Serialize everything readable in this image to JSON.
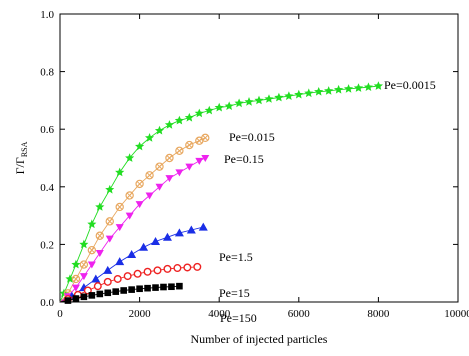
{
  "chart_data": {
    "type": "line",
    "xlabel": "Number of injected particles",
    "ylabel_main": "Γ/Γ",
    "ylabel_sub": "RSA",
    "xlim": [
      0,
      10000
    ],
    "ylim": [
      0,
      1.0
    ],
    "x_ticks": [
      "0",
      "2000",
      "4000",
      "6000",
      "8000",
      "10000"
    ],
    "y_ticks": [
      "0.0",
      "0.2",
      "0.4",
      "0.6",
      "0.8",
      "1.0"
    ],
    "grid": false,
    "series": [
      {
        "name": "Pe=0.0015",
        "color": "#22dd22",
        "marker": "star",
        "x": [
          100,
          250,
          400,
          600,
          800,
          1000,
          1250,
          1500,
          1750,
          2000,
          2250,
          2500,
          2750,
          3000,
          3250,
          3500,
          3750,
          4000,
          4250,
          4500,
          4750,
          5000,
          5250,
          5500,
          5750,
          6000,
          6250,
          6500,
          6750,
          7000,
          7250,
          7500,
          7750,
          8000
        ],
        "y": [
          0.03,
          0.08,
          0.13,
          0.2,
          0.27,
          0.33,
          0.39,
          0.45,
          0.5,
          0.54,
          0.57,
          0.595,
          0.615,
          0.63,
          0.64,
          0.655,
          0.665,
          0.675,
          0.68,
          0.69,
          0.695,
          0.7,
          0.705,
          0.71,
          0.715,
          0.72,
          0.725,
          0.73,
          0.733,
          0.737,
          0.74,
          0.743,
          0.746,
          0.75
        ]
      },
      {
        "name": "Pe=0.015",
        "color": "#e8a860",
        "marker": "circle-x",
        "x": [
          200,
          400,
          600,
          800,
          1000,
          1250,
          1500,
          1750,
          2000,
          2250,
          2500,
          2750,
          3000,
          3250,
          3500,
          3650
        ],
        "y": [
          0.03,
          0.08,
          0.13,
          0.18,
          0.23,
          0.28,
          0.33,
          0.37,
          0.41,
          0.44,
          0.47,
          0.5,
          0.525,
          0.545,
          0.56,
          0.57
        ]
      },
      {
        "name": "Pe=0.15",
        "color": "#ee22ee",
        "marker": "triangle-down",
        "x": [
          200,
          400,
          600,
          800,
          1000,
          1250,
          1500,
          1750,
          2000,
          2250,
          2500,
          2750,
          3000,
          3250,
          3500,
          3650
        ],
        "y": [
          0.02,
          0.05,
          0.09,
          0.13,
          0.17,
          0.22,
          0.26,
          0.3,
          0.34,
          0.37,
          0.4,
          0.43,
          0.45,
          0.47,
          0.49,
          0.5
        ]
      },
      {
        "name": "Pe=1.5",
        "color": "#1a2ee6",
        "marker": "triangle-up",
        "x": [
          300,
          600,
          900,
          1200,
          1500,
          1800,
          2100,
          2400,
          2700,
          3000,
          3300,
          3600
        ],
        "y": [
          0.02,
          0.05,
          0.08,
          0.11,
          0.14,
          0.165,
          0.19,
          0.21,
          0.225,
          0.24,
          0.25,
          0.26
        ]
      },
      {
        "name": "Pe=15",
        "color": "#ee2222",
        "marker": "circle",
        "x": [
          200,
          450,
          700,
          950,
          1200,
          1450,
          1700,
          1950,
          2200,
          2450,
          2700,
          2950,
          3200,
          3450
        ],
        "y": [
          0.01,
          0.025,
          0.04,
          0.055,
          0.07,
          0.08,
          0.09,
          0.098,
          0.105,
          0.11,
          0.115,
          0.118,
          0.12,
          0.122
        ]
      },
      {
        "name": "Pe=150",
        "color": "#000000",
        "marker": "square",
        "x": [
          200,
          400,
          600,
          800,
          1000,
          1200,
          1400,
          1600,
          1800,
          2000,
          2200,
          2400,
          2600,
          2800,
          3000
        ],
        "y": [
          0.005,
          0.012,
          0.018,
          0.023,
          0.028,
          0.032,
          0.036,
          0.04,
          0.043,
          0.046,
          0.048,
          0.05,
          0.052,
          0.053,
          0.055
        ]
      }
    ]
  }
}
